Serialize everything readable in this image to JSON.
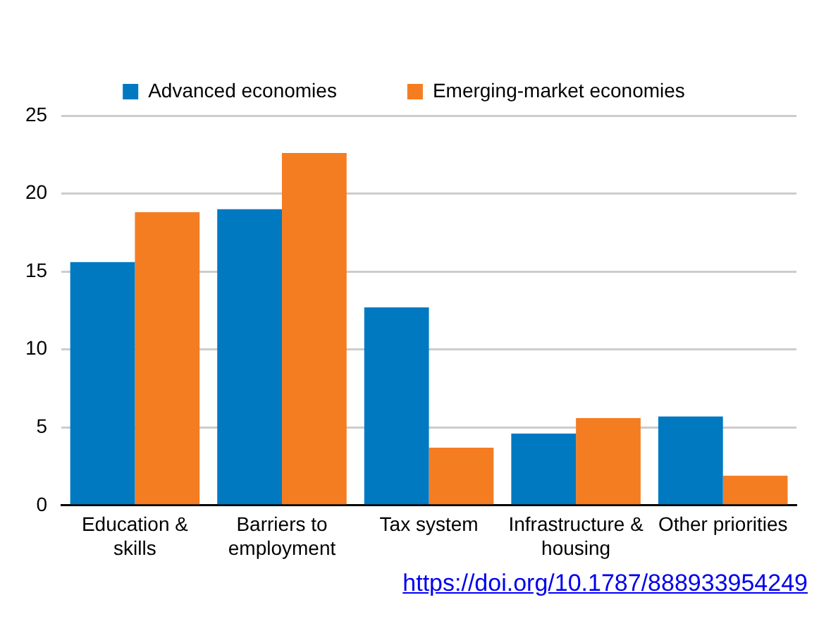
{
  "chart_data": {
    "type": "bar",
    "categories": [
      "Education & skills",
      "Barriers to employment",
      "Tax system",
      "Infrastructure & housing",
      "Other priorities"
    ],
    "series": [
      {
        "name": "Advanced economies",
        "color": "#0079c1",
        "values": [
          15.6,
          19.0,
          12.7,
          4.6,
          5.7
        ]
      },
      {
        "name": "Emerging-market economies",
        "color": "#f47d22",
        "values": [
          18.8,
          22.6,
          3.7,
          5.6,
          1.9
        ]
      }
    ],
    "ylim": [
      0,
      25
    ],
    "yticks": [
      0,
      5,
      10,
      15,
      20,
      25
    ],
    "grid": "y",
    "legend": "top",
    "annotations": [
      "https://doi.org/10.1787/888933954249"
    ]
  }
}
